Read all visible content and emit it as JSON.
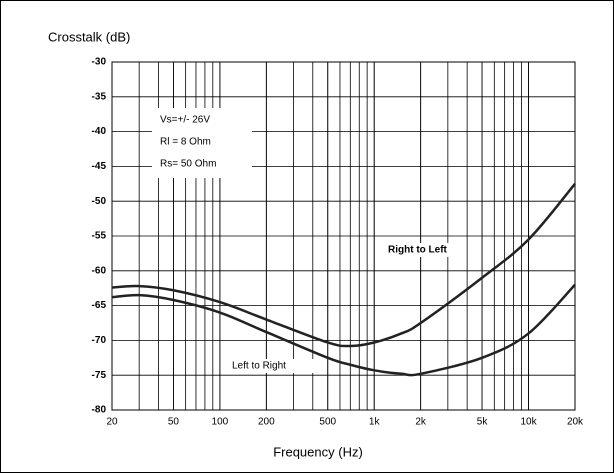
{
  "chart_data": {
    "type": "line",
    "title": "Crosstalk (dB)",
    "x_label": "Frequency (Hz)",
    "log_x": true,
    "grid": true,
    "x": [
      20,
      30,
      50,
      100,
      200,
      500,
      700,
      1000,
      1500,
      2000,
      5000,
      10000,
      20000
    ],
    "series": [
      {
        "name": "Right to Left",
        "color": "#222222",
        "values": [
          -62.4,
          -62.2,
          -62.8,
          -64.5,
          -67,
          -70.3,
          -70.8,
          -70.3,
          -69,
          -67.5,
          -61,
          -55.5,
          -47.5
        ]
      },
      {
        "name": "Left to Right",
        "color": "#222222",
        "values": [
          -63.8,
          -63.5,
          -64.2,
          -66,
          -68.8,
          -72.5,
          -73.5,
          -74.3,
          -74.8,
          -74.8,
          -72.5,
          -69,
          -62
        ]
      }
    ],
    "xlim": [
      20,
      20000
    ],
    "xticks": [
      20,
      50,
      100,
      200,
      500,
      {
        "value": 1000,
        "label": "1k"
      },
      {
        "value": 2000,
        "label": "2k"
      },
      {
        "value": 5000,
        "label": "5k"
      },
      {
        "value": 10000,
        "label": "10k"
      },
      {
        "value": 20000,
        "label": "20k"
      }
    ],
    "ylim": [
      -80,
      -30
    ],
    "yticks": [
      -80,
      -75,
      -70,
      -65,
      -60,
      -55,
      -50,
      -45,
      -40,
      -35,
      -30
    ],
    "annotations": [
      "Vs=+/- 26V",
      "Rl = 8 Ohm",
      "Rs= 50  Ohm"
    ]
  }
}
